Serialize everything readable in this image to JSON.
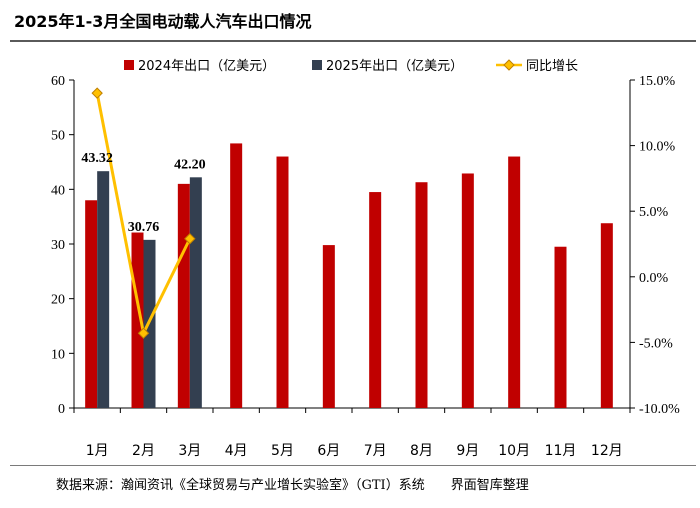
{
  "title": "2025年1-3月全国电动载人汽车出口情况",
  "source": "数据来源：瀚闻资讯《全球贸易与产业增长实验室》（GTI）系统　　界面智库整理",
  "colors": {
    "series_2024": "#C00000",
    "series_2025": "#333F50",
    "growth_line": "#FFC000",
    "growth_marker_edge": "#C08000"
  },
  "chart_data": {
    "type": "bar",
    "categories": [
      "1月",
      "2月",
      "3月",
      "4月",
      "5月",
      "6月",
      "7月",
      "8月",
      "9月",
      "10月",
      "11月",
      "12月"
    ],
    "series": [
      {
        "name": "2024年出口（亿美元）",
        "axis": "left",
        "values": [
          38.0,
          32.1,
          41.0,
          48.4,
          46.0,
          29.8,
          39.5,
          41.3,
          42.9,
          46.0,
          29.5,
          33.8
        ]
      },
      {
        "name": "2025年出口（亿美元）",
        "axis": "left",
        "values": [
          43.32,
          30.76,
          42.2,
          null,
          null,
          null,
          null,
          null,
          null,
          null,
          null,
          null
        ],
        "labels": [
          "43.32",
          "30.76",
          "42.20"
        ]
      },
      {
        "name": "同比增长",
        "axis": "right",
        "type": "line",
        "values": [
          14.0,
          -4.3,
          2.9,
          null,
          null,
          null,
          null,
          null,
          null,
          null,
          null,
          null
        ]
      }
    ],
    "ylim": [
      0,
      60
    ],
    "yticks": [
      "0",
      "10",
      "20",
      "30",
      "40",
      "50",
      "60"
    ],
    "y2lim": [
      -10,
      15
    ],
    "y2ticks": [
      "-10.0%",
      "-5.0%",
      "0.0%",
      "5.0%",
      "10.0%",
      "15.0%"
    ],
    "grid": false,
    "legend": "top"
  }
}
